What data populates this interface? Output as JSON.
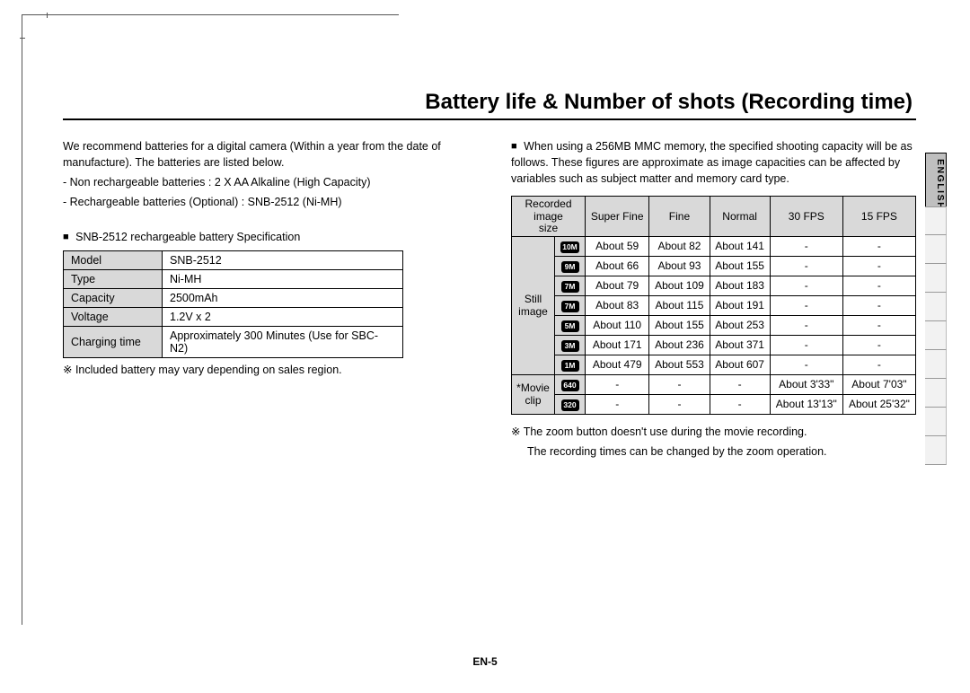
{
  "language_tab": "ENGLISH",
  "title": "Battery life & Number of shots (Recording time)",
  "page_number": "EN-5",
  "left": {
    "intro1": "We recommend batteries for a digital camera (Within a year from the date of manufacture). The batteries are listed below.",
    "bullet1": "- Non rechargeable batteries : 2 X AA Alkaline (High Capacity)",
    "bullet2": "- Rechargeable batteries (Optional) : SNB-2512 (Ni-MH)",
    "spec_header": "SNB-2512 rechargeable battery Specification",
    "spec_rows": [
      {
        "k": "Model",
        "v": "SNB-2512"
      },
      {
        "k": "Type",
        "v": "Ni-MH"
      },
      {
        "k": "Capacity",
        "v": "2500mAh"
      },
      {
        "k": "Voltage",
        "v": "1.2V x 2"
      },
      {
        "k": "Charging time",
        "v": "Approximately 300 Minutes (Use for SBC-N2)"
      }
    ],
    "footnote": "※ Included battery may vary depending on sales region."
  },
  "right": {
    "intro": "When using a 256MB MMC memory, the specified shooting capacity will be as follows. These figures are approximate as image capacities can be affected by variables such as subject matter and memory card type.",
    "header_size": "Recorded image size",
    "header_cols": [
      "Super Fine",
      "Fine",
      "Normal",
      "30 FPS",
      "15 FPS"
    ],
    "group_still": "Still image",
    "group_movie": "*Movie clip",
    "still_rows": [
      {
        "icon": "10M",
        "sf": "About 59",
        "f": "About 82",
        "n": "About 141",
        "c30": "-",
        "c15": "-"
      },
      {
        "icon": "9M",
        "sf": "About 66",
        "f": "About 93",
        "n": "About 155",
        "c30": "-",
        "c15": "-"
      },
      {
        "icon": "7M",
        "sf": "About 79",
        "f": "About 109",
        "n": "About 183",
        "c30": "-",
        "c15": "-"
      },
      {
        "icon": "7M",
        "sf": "About 83",
        "f": "About 115",
        "n": "About 191",
        "c30": "-",
        "c15": "-"
      },
      {
        "icon": "5M",
        "sf": "About 110",
        "f": "About 155",
        "n": "About 253",
        "c30": "-",
        "c15": "-"
      },
      {
        "icon": "3M",
        "sf": "About 171",
        "f": "About 236",
        "n": "About 371",
        "c30": "-",
        "c15": "-"
      },
      {
        "icon": "1M",
        "sf": "About 479",
        "f": "About 553",
        "n": "About 607",
        "c30": "-",
        "c15": "-"
      }
    ],
    "movie_rows": [
      {
        "icon": "640",
        "sf": "-",
        "f": "-",
        "n": "-",
        "c30": "About 3'33\"",
        "c15": "About 7'03\""
      },
      {
        "icon": "320",
        "sf": "-",
        "f": "-",
        "n": "-",
        "c30": "About 13'13\"",
        "c15": "About 25'32\""
      }
    ],
    "footnote1": "※ The zoom button doesn't use during the movie recording.",
    "footnote2": "The recording times can be changed by the zoom operation."
  }
}
